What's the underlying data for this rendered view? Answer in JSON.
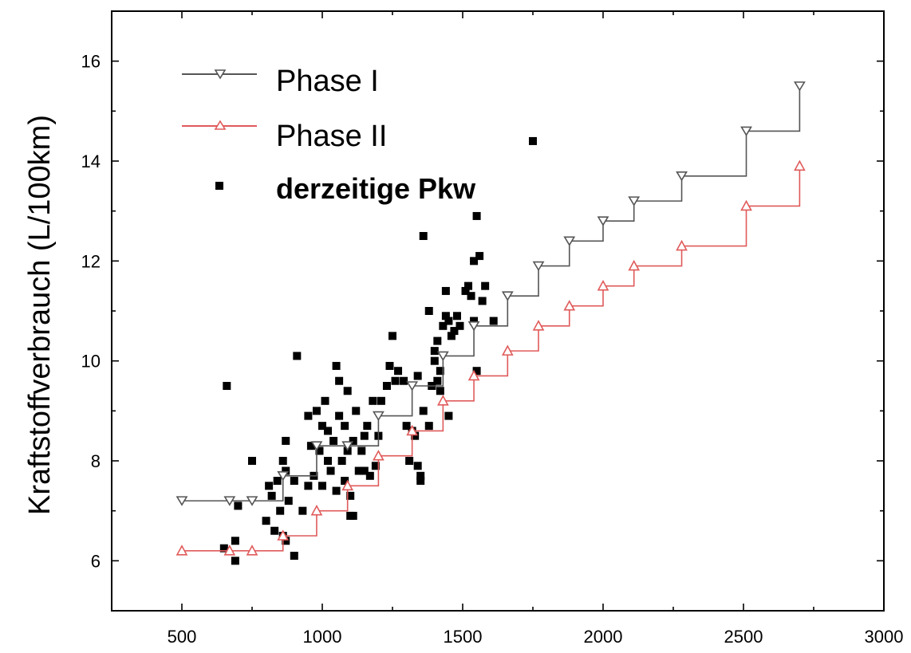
{
  "chart_data": {
    "type": "scatter",
    "title": "",
    "xlabel": "",
    "ylabel": "Kraftstoffverbrauch (L/100km)",
    "xlim": [
      250,
      3000
    ],
    "ylim": [
      5,
      17
    ],
    "x_ticks": [
      500,
      1000,
      1500,
      2000,
      2500,
      3000
    ],
    "y_ticks": [
      6,
      8,
      10,
      12,
      14,
      16
    ],
    "grid": false,
    "legend_position": "top-left",
    "series": [
      {
        "name": "Phase I",
        "kind": "step-line",
        "color": "#555555",
        "marker": "triangle-down",
        "x": [
          500,
          670,
          750,
          860,
          980,
          1090,
          1200,
          1320,
          1430,
          1540,
          1660,
          1770,
          1880,
          2000,
          2110,
          2280,
          2510,
          2700
        ],
        "y": [
          7.2,
          7.2,
          7.2,
          7.7,
          8.3,
          8.3,
          8.9,
          9.5,
          10.1,
          10.7,
          11.3,
          11.9,
          12.4,
          12.8,
          13.2,
          13.7,
          14.6,
          15.5
        ]
      },
      {
        "name": "Phase II",
        "kind": "step-line",
        "color": "#e05a5a",
        "marker": "triangle-up",
        "x": [
          500,
          670,
          750,
          860,
          980,
          1090,
          1200,
          1320,
          1430,
          1540,
          1660,
          1770,
          1880,
          2000,
          2110,
          2280,
          2510,
          2700
        ],
        "y": [
          6.2,
          6.2,
          6.2,
          6.5,
          7.0,
          7.5,
          8.1,
          8.6,
          9.2,
          9.7,
          10.2,
          10.7,
          11.1,
          11.5,
          11.9,
          12.3,
          13.1,
          13.9
        ]
      },
      {
        "name": "derzeitige Pkw",
        "kind": "scatter",
        "color": "#000000",
        "marker": "square",
        "points": [
          [
            650,
            6.25
          ],
          [
            660,
            9.5
          ],
          [
            690,
            6.0
          ],
          [
            690,
            6.4
          ],
          [
            700,
            7.1
          ],
          [
            750,
            8.0
          ],
          [
            800,
            6.8
          ],
          [
            810,
            7.5
          ],
          [
            820,
            7.3
          ],
          [
            830,
            6.6
          ],
          [
            840,
            7.6
          ],
          [
            850,
            7.0
          ],
          [
            860,
            6.5
          ],
          [
            860,
            8.0
          ],
          [
            870,
            6.4
          ],
          [
            870,
            7.8
          ],
          [
            870,
            8.4
          ],
          [
            880,
            7.2
          ],
          [
            900,
            7.6
          ],
          [
            900,
            6.1
          ],
          [
            910,
            10.1
          ],
          [
            930,
            7.0
          ],
          [
            950,
            7.5
          ],
          [
            950,
            8.9
          ],
          [
            960,
            8.3
          ],
          [
            970,
            7.7
          ],
          [
            980,
            9.0
          ],
          [
            990,
            8.2
          ],
          [
            1000,
            7.5
          ],
          [
            1000,
            8.7
          ],
          [
            1010,
            9.2
          ],
          [
            1020,
            8.0
          ],
          [
            1020,
            8.6
          ],
          [
            1030,
            7.8
          ],
          [
            1040,
            8.4
          ],
          [
            1050,
            9.9
          ],
          [
            1050,
            7.4
          ],
          [
            1060,
            8.9
          ],
          [
            1060,
            9.6
          ],
          [
            1070,
            8.0
          ],
          [
            1080,
            8.7
          ],
          [
            1080,
            7.6
          ],
          [
            1090,
            9.4
          ],
          [
            1090,
            8.2
          ],
          [
            1100,
            7.3
          ],
          [
            1100,
            6.9
          ],
          [
            1110,
            6.9
          ],
          [
            1110,
            8.4
          ],
          [
            1120,
            9.0
          ],
          [
            1130,
            7.8
          ],
          [
            1140,
            8.2
          ],
          [
            1150,
            7.8
          ],
          [
            1150,
            8.5
          ],
          [
            1160,
            8.7
          ],
          [
            1170,
            7.7
          ],
          [
            1180,
            9.2
          ],
          [
            1190,
            7.9
          ],
          [
            1200,
            8.5
          ],
          [
            1210,
            9.2
          ],
          [
            1230,
            9.5
          ],
          [
            1240,
            9.9
          ],
          [
            1250,
            10.5
          ],
          [
            1260,
            9.6
          ],
          [
            1270,
            9.8
          ],
          [
            1290,
            9.6
          ],
          [
            1300,
            8.7
          ],
          [
            1310,
            8.0
          ],
          [
            1320,
            8.6
          ],
          [
            1330,
            8.5
          ],
          [
            1340,
            9.7
          ],
          [
            1340,
            7.9
          ],
          [
            1350,
            7.7
          ],
          [
            1350,
            7.6
          ],
          [
            1360,
            9.0
          ],
          [
            1360,
            12.5
          ],
          [
            1380,
            11.0
          ],
          [
            1380,
            8.7
          ],
          [
            1390,
            9.5
          ],
          [
            1400,
            10.0
          ],
          [
            1400,
            10.2
          ],
          [
            1410,
            9.6
          ],
          [
            1410,
            10.4
          ],
          [
            1420,
            9.4
          ],
          [
            1420,
            9.8
          ],
          [
            1430,
            10.7
          ],
          [
            1440,
            11.4
          ],
          [
            1440,
            10.9
          ],
          [
            1450,
            8.9
          ],
          [
            1450,
            10.8
          ],
          [
            1460,
            10.5
          ],
          [
            1470,
            10.6
          ],
          [
            1480,
            10.9
          ],
          [
            1490,
            10.7
          ],
          [
            1510,
            11.4
          ],
          [
            1520,
            11.5
          ],
          [
            1530,
            11.3
          ],
          [
            1540,
            12.0
          ],
          [
            1540,
            10.8
          ],
          [
            1550,
            9.8
          ],
          [
            1550,
            12.9
          ],
          [
            1560,
            12.1
          ],
          [
            1570,
            11.2
          ],
          [
            1580,
            11.5
          ],
          [
            1610,
            10.8
          ],
          [
            1750,
            14.4
          ]
        ]
      }
    ]
  }
}
